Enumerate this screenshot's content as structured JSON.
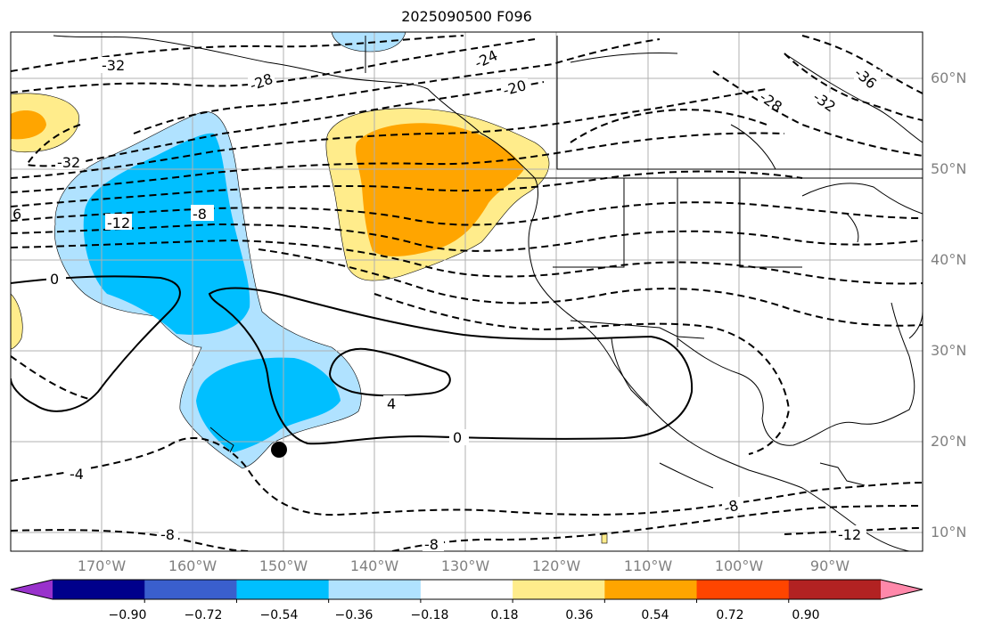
{
  "title": "2025090500 F096",
  "lon_labels": [
    "170°W",
    "160°W",
    "150°W",
    "140°W",
    "130°W",
    "120°W",
    "110°W",
    "100°W",
    "90°W"
  ],
  "lat_labels": [
    "60°N",
    "50°N",
    "40°N",
    "30°N",
    "20°N",
    "10°N"
  ],
  "contour_labels": [
    "-32",
    "-28",
    "-24",
    "-20",
    "-36",
    "-32",
    "-28",
    "-32",
    "-12",
    "-8",
    "6",
    "0",
    "4",
    "0",
    "-4",
    "-8",
    "-8",
    "-8",
    "-12"
  ],
  "colorbar": {
    "tick_labels": [
      "−0.90",
      "−0.72",
      "−0.54",
      "−0.36",
      "−0.18",
      "0.18",
      "0.36",
      "0.54",
      "0.72",
      "0.90"
    ],
    "colors": [
      "#9932cc",
      "#00008b",
      "#3a5fcd",
      "#00bfff",
      "#b0e2ff",
      "#ffffff",
      "#ffec8b",
      "#ffa500",
      "#ff4500",
      "#b22222",
      "#ff88aa"
    ]
  },
  "marker": {
    "name": "storm-position",
    "lon": -150.2,
    "lat": 18.9
  }
}
